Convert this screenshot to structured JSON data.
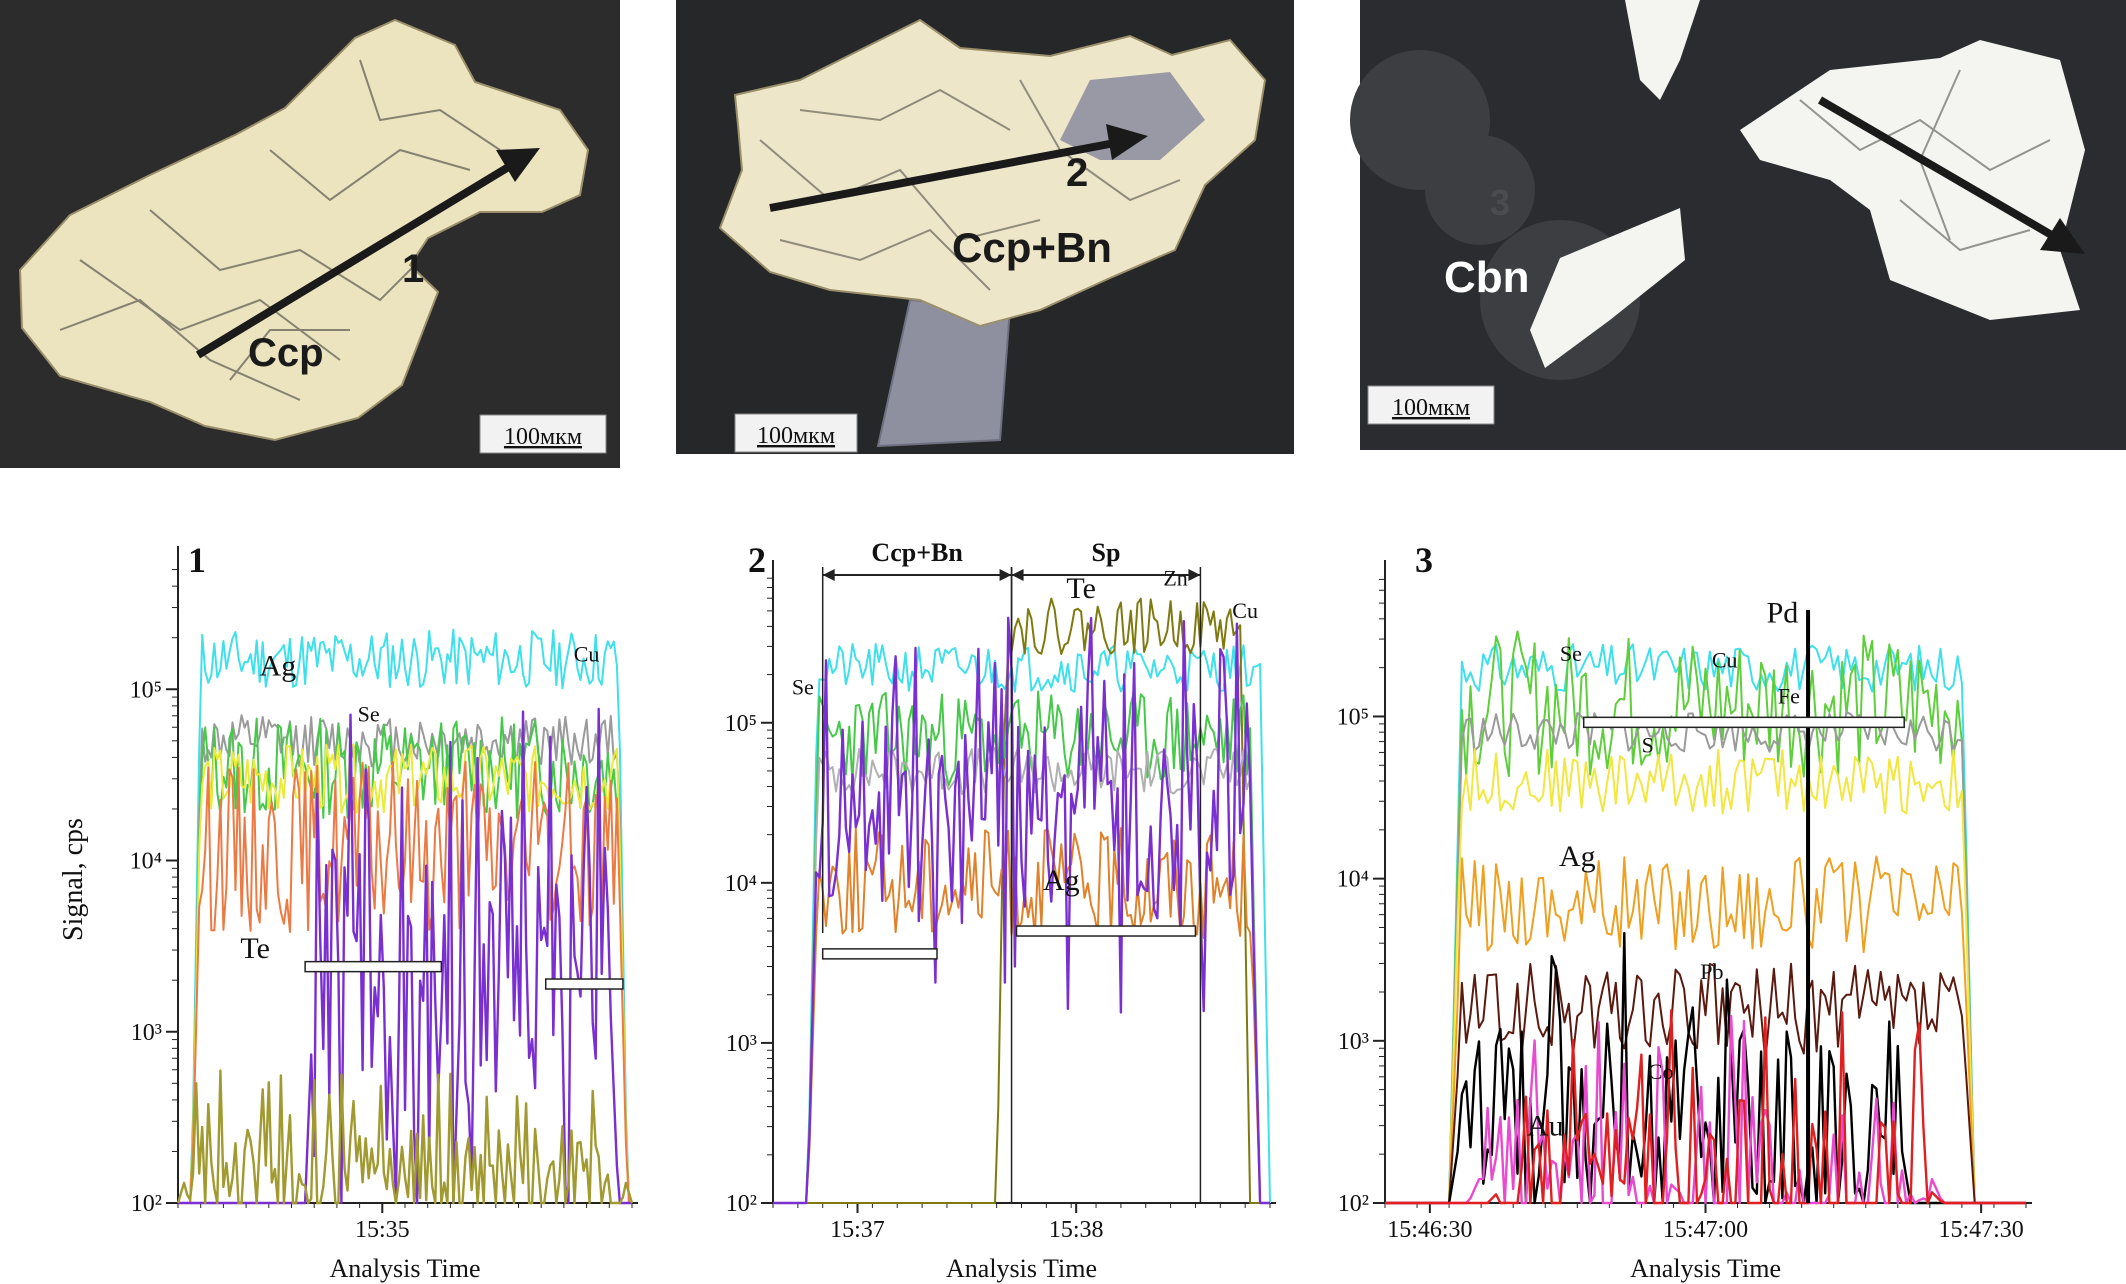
{
  "photos": [
    {
      "mineral_label": "Ccp",
      "arrow_label": "1",
      "scale_bar": "100мкм",
      "bg": "#2c2c2c",
      "grain": "#ece3bf"
    },
    {
      "mineral_label": "Ccp+Bn",
      "arrow_label": "2",
      "scale_bar": "100мкм",
      "bg": "#262729",
      "grain": "#eee6c8",
      "inclusion": "#8e90a0"
    },
    {
      "mineral_label": "Cbn",
      "arrow_label": "3",
      "scale_bar": "100мкм",
      "bg": "#2a2c2f",
      "grain": "#f4f4f0"
    }
  ],
  "chart_data": [
    {
      "type": "line",
      "panel_label": "1",
      "xlabel": "Analysis Time",
      "ylabel": "Signal, cps",
      "y_scale": "log",
      "ylim": [
        100,
        600000
      ],
      "y_ticks": [
        {
          "v": 100,
          "label": "10²"
        },
        {
          "v": 1000,
          "label": "10³"
        },
        {
          "v": 10000,
          "label": "10⁴"
        },
        {
          "v": 100000,
          "label": "10⁵"
        }
      ],
      "xlim": [
        0,
        100
      ],
      "x_ticks": [
        {
          "x": 45,
          "label": "15:35"
        }
      ],
      "series": [
        {
          "name": "Cu",
          "color": "#3fe0ea",
          "base": 150000,
          "start": 5,
          "end": 97,
          "amp": 0.35,
          "seed": 11
        },
        {
          "name": "Se",
          "color": "#9a9a9a",
          "base": 50000,
          "start": 5,
          "end": 97,
          "amp": 0.3,
          "seed": 12
        },
        {
          "name": "",
          "color": "#46c94a",
          "base": 35000,
          "start": 5,
          "end": 97,
          "amp": 0.6,
          "seed": 13
        },
        {
          "name": "",
          "color": "#eaea3a",
          "base": 30000,
          "start": 5,
          "end": 97,
          "amp": 0.4,
          "seed": 14
        },
        {
          "name": "Ag",
          "color": "#ec7a44",
          "base": 12000,
          "start": 5,
          "end": 97,
          "amp": 1.0,
          "seed": 15
        },
        {
          "name": "Te",
          "color": "#7a2fd0",
          "base": 2000,
          "start": 30,
          "end": 95,
          "amp": 1.6,
          "seed": 16,
          "spiky": true
        },
        {
          "name": "",
          "color": "#a09a30",
          "base": 150,
          "start": 2,
          "end": 98,
          "amp": 0.6,
          "seed": 17,
          "spiky": true
        }
      ],
      "annotations": [
        {
          "text": "Ag",
          "x": 22,
          "y": 120000
        },
        {
          "text": "Se",
          "x": 42,
          "y": 65000
        },
        {
          "text": "Cu",
          "x": 90,
          "y": 145000
        },
        {
          "text": "Te",
          "x": 17,
          "y": 2700
        }
      ],
      "intervals": [
        {
          "x0": 28,
          "x1": 58,
          "y": 2400
        },
        {
          "x0": 81,
          "x1": 98,
          "y": 1900
        }
      ]
    },
    {
      "type": "line",
      "panel_label": "2",
      "xlabel": "Analysis Time",
      "ylabel": "",
      "y_scale": "log",
      "ylim": [
        100,
        900000
      ],
      "y_ticks": [
        {
          "v": 100,
          "label": "10²"
        },
        {
          "v": 1000,
          "label": "10³"
        },
        {
          "v": 10000,
          "label": "10⁴"
        },
        {
          "v": 100000,
          "label": "10⁵"
        }
      ],
      "xlim": [
        0,
        100
      ],
      "x_ticks": [
        {
          "x": 17,
          "label": "15:37"
        },
        {
          "x": 61,
          "label": "15:38"
        }
      ],
      "series": [
        {
          "name": "Cu",
          "color": "#3fe0ea",
          "base": 220000,
          "start": 9,
          "end": 98,
          "amp": 0.3,
          "seed": 21
        },
        {
          "name": "Zn",
          "color": "#7f7a10",
          "base": 400000,
          "start": 47,
          "end": 94,
          "amp": 0.35,
          "seed": 22
        },
        {
          "name": "",
          "color": "#46c94a",
          "base": 80000,
          "start": 9,
          "end": 96,
          "amp": 0.6,
          "seed": 23
        },
        {
          "name": "Se",
          "color": "#b0b0b0",
          "base": 50000,
          "start": 9,
          "end": 96,
          "amp": 0.3,
          "seed": 24
        },
        {
          "name": "Ag",
          "color": "#e0822c",
          "base": 10000,
          "start": 9,
          "end": 96,
          "amp": 0.7,
          "seed": 25
        },
        {
          "name": "Te",
          "color": "#7a2fd0",
          "base": 30000,
          "start": 9,
          "end": 96,
          "amp": 1.3,
          "seed": 26,
          "spiky": true
        }
      ],
      "annotations": [
        {
          "text": "Se",
          "x": 6,
          "y": 150000
        },
        {
          "text": "Te",
          "x": 62,
          "y": 600000
        },
        {
          "text": "Zn",
          "x": 81,
          "y": 720000
        },
        {
          "text": "Cu",
          "x": 95,
          "y": 450000
        },
        {
          "text": "Ag",
          "x": 58,
          "y": 9000
        }
      ],
      "brackets": [
        {
          "text": "Ccp+Bn",
          "x0": 10,
          "x1": 48
        },
        {
          "text": "Sp",
          "x0": 48,
          "x1": 86
        }
      ],
      "intervals": [
        {
          "x0": 10,
          "x1": 33,
          "y": 3600
        },
        {
          "x0": 49,
          "x1": 85,
          "y": 5000
        }
      ]
    },
    {
      "type": "line",
      "panel_label": "3",
      "xlabel": "Analysis Time",
      "ylabel": "",
      "y_scale": "log",
      "ylim": [
        100,
        800000
      ],
      "y_ticks": [
        {
          "v": 100,
          "label": "10²"
        },
        {
          "v": 1000,
          "label": "10³"
        },
        {
          "v": 10000,
          "label": "10⁴"
        },
        {
          "v": 100000,
          "label": "10⁵"
        }
      ],
      "xlim": [
        0,
        100
      ],
      "x_ticks": [
        {
          "x": 7,
          "label": "15:46:30"
        },
        {
          "x": 50,
          "label": "15:47:00"
        },
        {
          "x": 93,
          "label": "15:47:30"
        }
      ],
      "series": [
        {
          "name": "Cu",
          "color": "#3fe0ea",
          "base": 200000,
          "start": 12,
          "end": 90,
          "amp": 0.3,
          "seed": 31
        },
        {
          "name": "Se",
          "color": "#5ecf3a",
          "base": 120000,
          "start": 12,
          "end": 90,
          "amp": 0.9,
          "seed": 32
        },
        {
          "name": "S",
          "color": "#9a9a9a",
          "base": 80000,
          "start": 12,
          "end": 90,
          "amp": 0.25,
          "seed": 33
        },
        {
          "name": "Fe",
          "color": "#f2e640",
          "base": 40000,
          "start": 12,
          "end": 90,
          "amp": 0.4,
          "seed": 34
        },
        {
          "name": "Ag",
          "color": "#f0a020",
          "base": 7000,
          "start": 12,
          "end": 90,
          "amp": 0.6,
          "seed": 35
        },
        {
          "name": "Pb",
          "color": "#5a1a10",
          "base": 1500,
          "start": 12,
          "end": 90,
          "amp": 0.6,
          "seed": 36
        },
        {
          "name": "Pd",
          "color": "#000000",
          "base": 300,
          "start": 12,
          "end": 80,
          "amp": 1.4,
          "seed": 37,
          "spiky": true
        },
        {
          "name": "Co",
          "color": "#e84ad0",
          "base": 150,
          "start": 15,
          "end": 85,
          "amp": 1.0,
          "seed": 38,
          "spiky": true
        },
        {
          "name": "Au",
          "color": "#e02020",
          "base": 120,
          "start": 18,
          "end": 85,
          "amp": 1.2,
          "seed": 39,
          "spiky": true
        }
      ],
      "annotations": [
        {
          "text": "Se",
          "x": 29,
          "y": 220000
        },
        {
          "text": "Cu",
          "x": 53,
          "y": 200000
        },
        {
          "text": "Pd",
          "x": 62,
          "y": 380000
        },
        {
          "text": "Fe",
          "x": 63,
          "y": 120000
        },
        {
          "text": "S",
          "x": 41,
          "y": 60000
        },
        {
          "text": "Ag",
          "x": 30,
          "y": 12000
        },
        {
          "text": "Pb",
          "x": 51,
          "y": 2400
        },
        {
          "text": "Co",
          "x": 43,
          "y": 580
        },
        {
          "text": "Au",
          "x": 25,
          "y": 260
        }
      ],
      "pd_line_x": 66,
      "intervals": [
        {
          "x0": 31,
          "x1": 81,
          "y": 92000
        }
      ]
    }
  ]
}
